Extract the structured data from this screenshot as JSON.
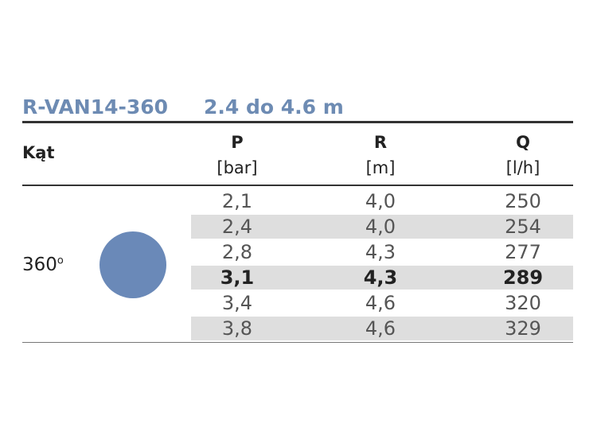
{
  "header": {
    "model": "R-VAN14-360",
    "range": "2.4 do 4.6 m"
  },
  "table": {
    "columns": [
      {
        "name": "Kąt"
      },
      {
        "name": "P",
        "unit": "[bar]"
      },
      {
        "name": "R",
        "unit": "[m]"
      },
      {
        "name": "Q",
        "unit": "[l/h]"
      }
    ],
    "angle": {
      "value": "360",
      "superscript": "o"
    },
    "rows": [
      [
        "2,1",
        "4,0",
        "250"
      ],
      [
        "2,4",
        "4,0",
        "254"
      ],
      [
        "2,8",
        "4,3",
        "277"
      ],
      [
        "3,1",
        "4,3",
        "289"
      ],
      [
        "3,4",
        "4,6",
        "320"
      ],
      [
        "3,8",
        "4,6",
        "329"
      ]
    ],
    "bold_row": 3,
    "circle_color": "#6a89b8"
  }
}
